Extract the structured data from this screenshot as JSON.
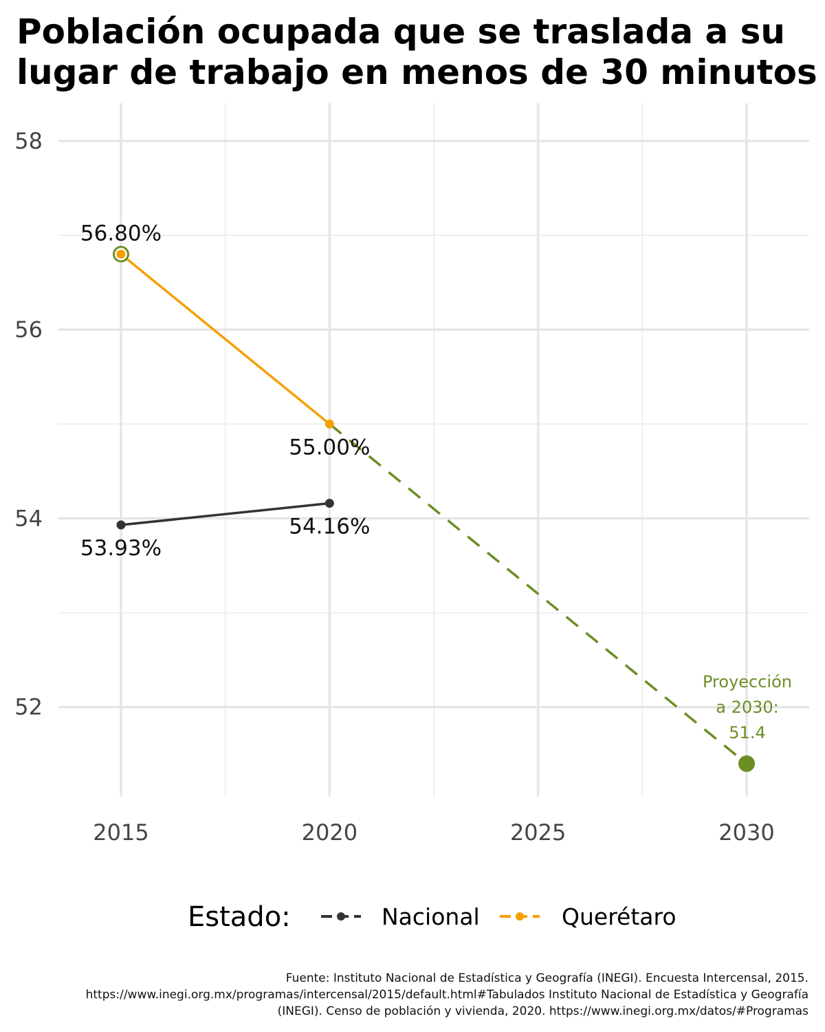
{
  "chart_data": {
    "type": "line",
    "title_lines": [
      "Población ocupada que se traslada a su",
      "lugar de trabajo en menos de 30 minutos"
    ],
    "x_ticks": [
      2015,
      2020,
      2025,
      2030
    ],
    "y_ticks": [
      52,
      54,
      56,
      58
    ],
    "xlim": [
      2013.5,
      2031.5
    ],
    "ylim": [
      51.05,
      58.4
    ],
    "grid": true,
    "series": [
      {
        "name": "Nacional",
        "color": "#333333",
        "x": [
          2015,
          2020
        ],
        "y": [
          53.93,
          54.16
        ],
        "labels": [
          "53.93%",
          "54.16%"
        ]
      },
      {
        "name": "Querétaro",
        "color": "#f5a000",
        "x": [
          2015,
          2020
        ],
        "y": [
          56.8,
          55.0
        ],
        "labels": [
          "56.80%",
          "55.00%"
        ]
      }
    ],
    "projection": {
      "color": "#6b8e23",
      "x": [
        2020,
        2030
      ],
      "y": [
        55.0,
        51.4
      ],
      "label_lines": [
        "Proyección",
        "a 2030:",
        "51.4"
      ]
    },
    "legend": {
      "title": "Estado:",
      "position": "bottom",
      "items": [
        "Nacional",
        "Querétaro"
      ]
    },
    "caption_lines": [
      "Fuente: Instituto Nacional de Estadística y Geografía (INEGI). Encuesta Intercensal, 2015.",
      "https://www.inegi.org.mx/programas/intercensal/2015/default.html#Tabulados Instituto Nacional de Estadística y Geografía",
      "(INEGI). Censo de población y vivienda, 2020. https://www.inegi.org.mx/datos/#Programas"
    ]
  }
}
